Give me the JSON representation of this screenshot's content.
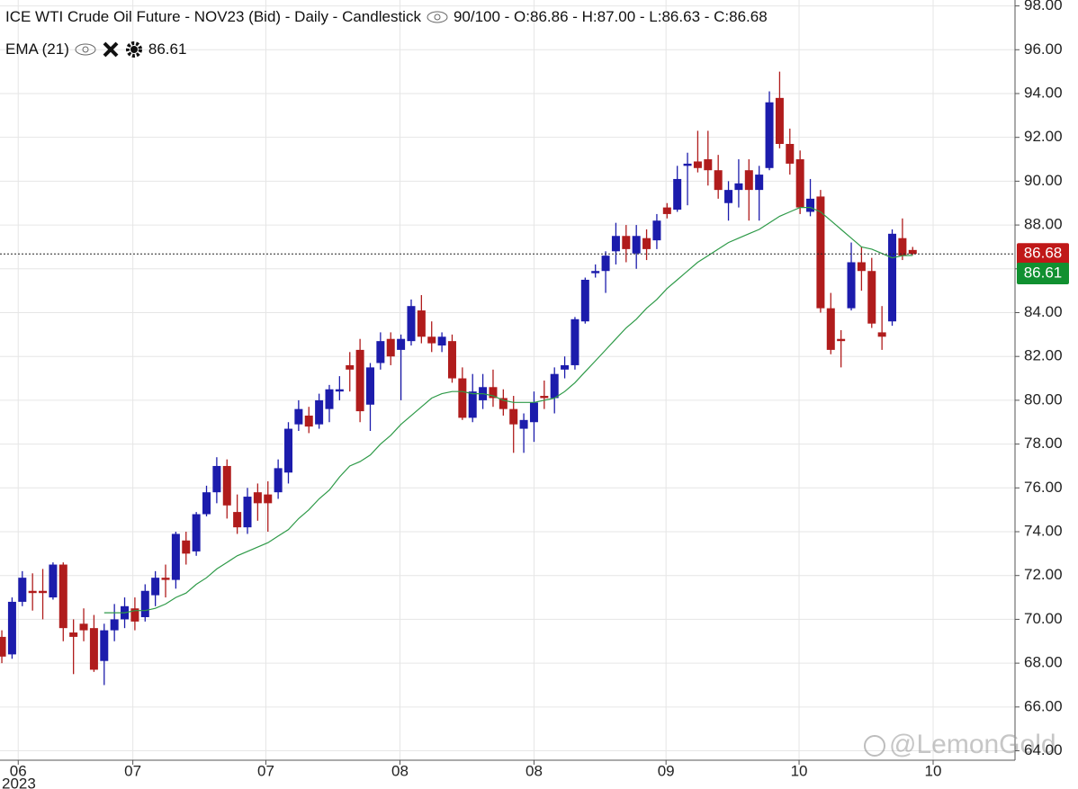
{
  "chart_data": {
    "type": "candlestick",
    "title": "ICE WTI Crude Oil Future - NOV23 (Bid) - Daily - Candlestick",
    "status": "90/100 - O:86.86 - H:87.00 - L:86.63 - C:86.68",
    "year_label": "2023",
    "watermark": "@LemonGold",
    "xlim": [
      -0.18,
      99.0
    ],
    "xticks": [
      {
        "value": 1.6,
        "label": "06"
      },
      {
        "value": 12.8,
        "label": "07"
      },
      {
        "value": 25.8,
        "label": "07"
      },
      {
        "value": 38.9,
        "label": "08"
      },
      {
        "value": 52.0,
        "label": "08"
      },
      {
        "value": 64.9,
        "label": "09"
      },
      {
        "value": 77.9,
        "label": "10"
      },
      {
        "value": 91.0,
        "label": "10"
      }
    ],
    "ylim": [
      63.57,
      98.27
    ],
    "yticks": [
      {
        "value": 64,
        "label": "64.00"
      },
      {
        "value": 66,
        "label": "66.00"
      },
      {
        "value": 68,
        "label": "68.00"
      },
      {
        "value": 70,
        "label": "70.00"
      },
      {
        "value": 72,
        "label": "72.00"
      },
      {
        "value": 74,
        "label": "74.00"
      },
      {
        "value": 76,
        "label": "76.00"
      },
      {
        "value": 78,
        "label": "78.00"
      },
      {
        "value": 80,
        "label": "80.00"
      },
      {
        "value": 82,
        "label": "82.00"
      },
      {
        "value": 84,
        "label": "84.00"
      },
      {
        "value": 86,
        "label": "86.00"
      },
      {
        "value": 88,
        "label": "88.00"
      },
      {
        "value": 90,
        "label": "90.00"
      },
      {
        "value": 92,
        "label": "92.00"
      },
      {
        "value": 94,
        "label": "94.00"
      },
      {
        "value": 96,
        "label": "96.00"
      },
      {
        "value": 98,
        "label": "98.00"
      }
    ],
    "grid": true,
    "candles": {
      "up_color": "#1c1cac",
      "down_color": "#b01c1c",
      "open": [
        69.2,
        68.4,
        70.8,
        71.3,
        71.3,
        71.0,
        72.5,
        69.4,
        69.8,
        69.6,
        68.1,
        69.5,
        70.0,
        70.5,
        70.1,
        71.1,
        71.9,
        71.8,
        73.6,
        73.1,
        74.8,
        75.8,
        77.0,
        74.9,
        74.2,
        75.8,
        75.7,
        75.8,
        76.7,
        78.9,
        79.3,
        78.9,
        79.6,
        80.4,
        81.6,
        82.3,
        79.8,
        81.7,
        82.8,
        82.3,
        82.7,
        84.1,
        82.9,
        82.5,
        82.7,
        81.0,
        79.2,
        80.0,
        80.6,
        80.1,
        79.6,
        78.7,
        79.0,
        80.2,
        80.1,
        81.4,
        81.6,
        83.6,
        85.8,
        85.9,
        86.8,
        87.5,
        86.7,
        87.4,
        87.3,
        88.8,
        88.7,
        90.7,
        90.9,
        91.0,
        90.5,
        89.0,
        89.6,
        90.5,
        89.6,
        90.6,
        93.8,
        91.7,
        91.0,
        88.6,
        89.3,
        84.2,
        82.8,
        84.2,
        86.3,
        85.9,
        83.1,
        83.6,
        87.4,
        86.86
      ],
      "high": [
        69.5,
        71.0,
        72.2,
        72.1,
        72.3,
        72.6,
        72.6,
        70.0,
        70.5,
        70.2,
        69.8,
        70.7,
        71.0,
        71.0,
        71.6,
        72.2,
        72.5,
        74.0,
        74.0,
        74.9,
        76.1,
        77.4,
        77.3,
        75.7,
        76.0,
        76.2,
        76.3,
        77.3,
        79.0,
        80.0,
        79.7,
        80.3,
        80.7,
        81.1,
        82.2,
        82.8,
        81.7,
        83.1,
        83.1,
        83.0,
        84.6,
        84.8,
        83.6,
        83.1,
        83.0,
        81.5,
        81.2,
        81.2,
        81.4,
        80.5,
        80.2,
        79.4,
        80.4,
        80.9,
        81.5,
        82.0,
        83.8,
        85.6,
        86.2,
        86.8,
        88.1,
        88.0,
        88.0,
        87.8,
        88.5,
        89.0,
        90.7,
        91.3,
        92.3,
        92.3,
        91.2,
        90.0,
        91.0,
        91.0,
        90.7,
        94.1,
        95.0,
        92.4,
        91.4,
        90.1,
        89.6,
        84.9,
        83.2,
        87.2,
        87.0,
        86.5,
        84.3,
        87.8,
        88.3,
        87.0
      ],
      "low": [
        68.0,
        68.2,
        70.6,
        70.4,
        70.0,
        70.9,
        69.0,
        67.5,
        69.0,
        67.6,
        67.0,
        69.0,
        69.6,
        69.5,
        69.9,
        70.6,
        71.0,
        71.4,
        72.5,
        72.9,
        74.7,
        75.3,
        74.6,
        73.9,
        73.9,
        74.5,
        74.0,
        75.5,
        76.2,
        78.6,
        78.5,
        78.7,
        79.0,
        80.0,
        80.4,
        79.0,
        78.6,
        81.4,
        81.6,
        80.0,
        82.5,
        82.6,
        82.2,
        82.2,
        80.8,
        79.1,
        79.0,
        79.6,
        79.7,
        79.3,
        77.6,
        77.6,
        78.1,
        79.6,
        79.4,
        81.0,
        81.4,
        83.5,
        85.6,
        84.9,
        86.2,
        86.3,
        86.0,
        86.4,
        86.9,
        88.3,
        88.6,
        88.9,
        90.4,
        89.8,
        89.2,
        88.2,
        88.8,
        88.2,
        88.2,
        90.5,
        91.5,
        90.3,
        88.5,
        88.4,
        84.0,
        82.1,
        81.5,
        84.1,
        85.0,
        83.3,
        82.3,
        83.4,
        86.4,
        86.63
      ],
      "close": [
        68.3,
        70.8,
        71.9,
        71.2,
        71.2,
        72.5,
        69.6,
        69.2,
        69.5,
        67.7,
        69.5,
        70.0,
        70.6,
        69.9,
        71.3,
        71.9,
        71.8,
        73.9,
        73.0,
        74.8,
        75.8,
        77.0,
        75.2,
        74.2,
        75.6,
        75.3,
        75.3,
        76.9,
        78.7,
        79.6,
        78.8,
        80.0,
        80.5,
        80.5,
        81.4,
        79.5,
        81.5,
        82.7,
        82.0,
        82.8,
        84.3,
        82.9,
        82.6,
        82.9,
        81.0,
        79.2,
        80.4,
        80.6,
        80.1,
        79.6,
        78.9,
        79.1,
        79.9,
        80.1,
        81.2,
        81.6,
        83.7,
        85.5,
        85.9,
        86.6,
        87.5,
        86.9,
        87.5,
        86.9,
        88.2,
        88.5,
        90.1,
        90.8,
        90.6,
        90.5,
        89.6,
        89.6,
        89.9,
        89.6,
        90.3,
        93.6,
        91.7,
        90.8,
        88.8,
        89.2,
        84.2,
        82.3,
        82.7,
        86.3,
        85.9,
        83.5,
        82.9,
        87.6,
        86.6,
        86.68
      ]
    },
    "ema": {
      "name": "EMA (21)",
      "color": "#2e9a48",
      "values": [
        null,
        null,
        null,
        null,
        null,
        null,
        null,
        null,
        null,
        null,
        70.3,
        70.3,
        70.3,
        70.4,
        70.4,
        70.5,
        70.7,
        71.0,
        71.2,
        71.6,
        71.9,
        72.3,
        72.6,
        72.9,
        73.1,
        73.3,
        73.5,
        73.8,
        74.1,
        74.6,
        75.0,
        75.5,
        75.9,
        76.5,
        77.0,
        77.2,
        77.5,
        78.0,
        78.4,
        78.9,
        79.3,
        79.7,
        80.1,
        80.3,
        80.4,
        80.4,
        80.3,
        80.3,
        80.2,
        80.0,
        79.9,
        79.9,
        79.9,
        80.0,
        80.1,
        80.4,
        80.8,
        81.3,
        81.8,
        82.3,
        82.8,
        83.3,
        83.7,
        84.2,
        84.6,
        85.1,
        85.5,
        85.9,
        86.3,
        86.6,
        86.9,
        87.2,
        87.4,
        87.6,
        87.8,
        88.1,
        88.4,
        88.6,
        88.8,
        88.8,
        88.6,
        88.2,
        87.8,
        87.4,
        87.0,
        86.9,
        86.7,
        86.5,
        86.6,
        86.61
      ]
    },
    "price_tags": [
      {
        "value": 86.68,
        "color": "#c01818"
      },
      {
        "value": 86.61,
        "color": "#109030"
      }
    ]
  }
}
